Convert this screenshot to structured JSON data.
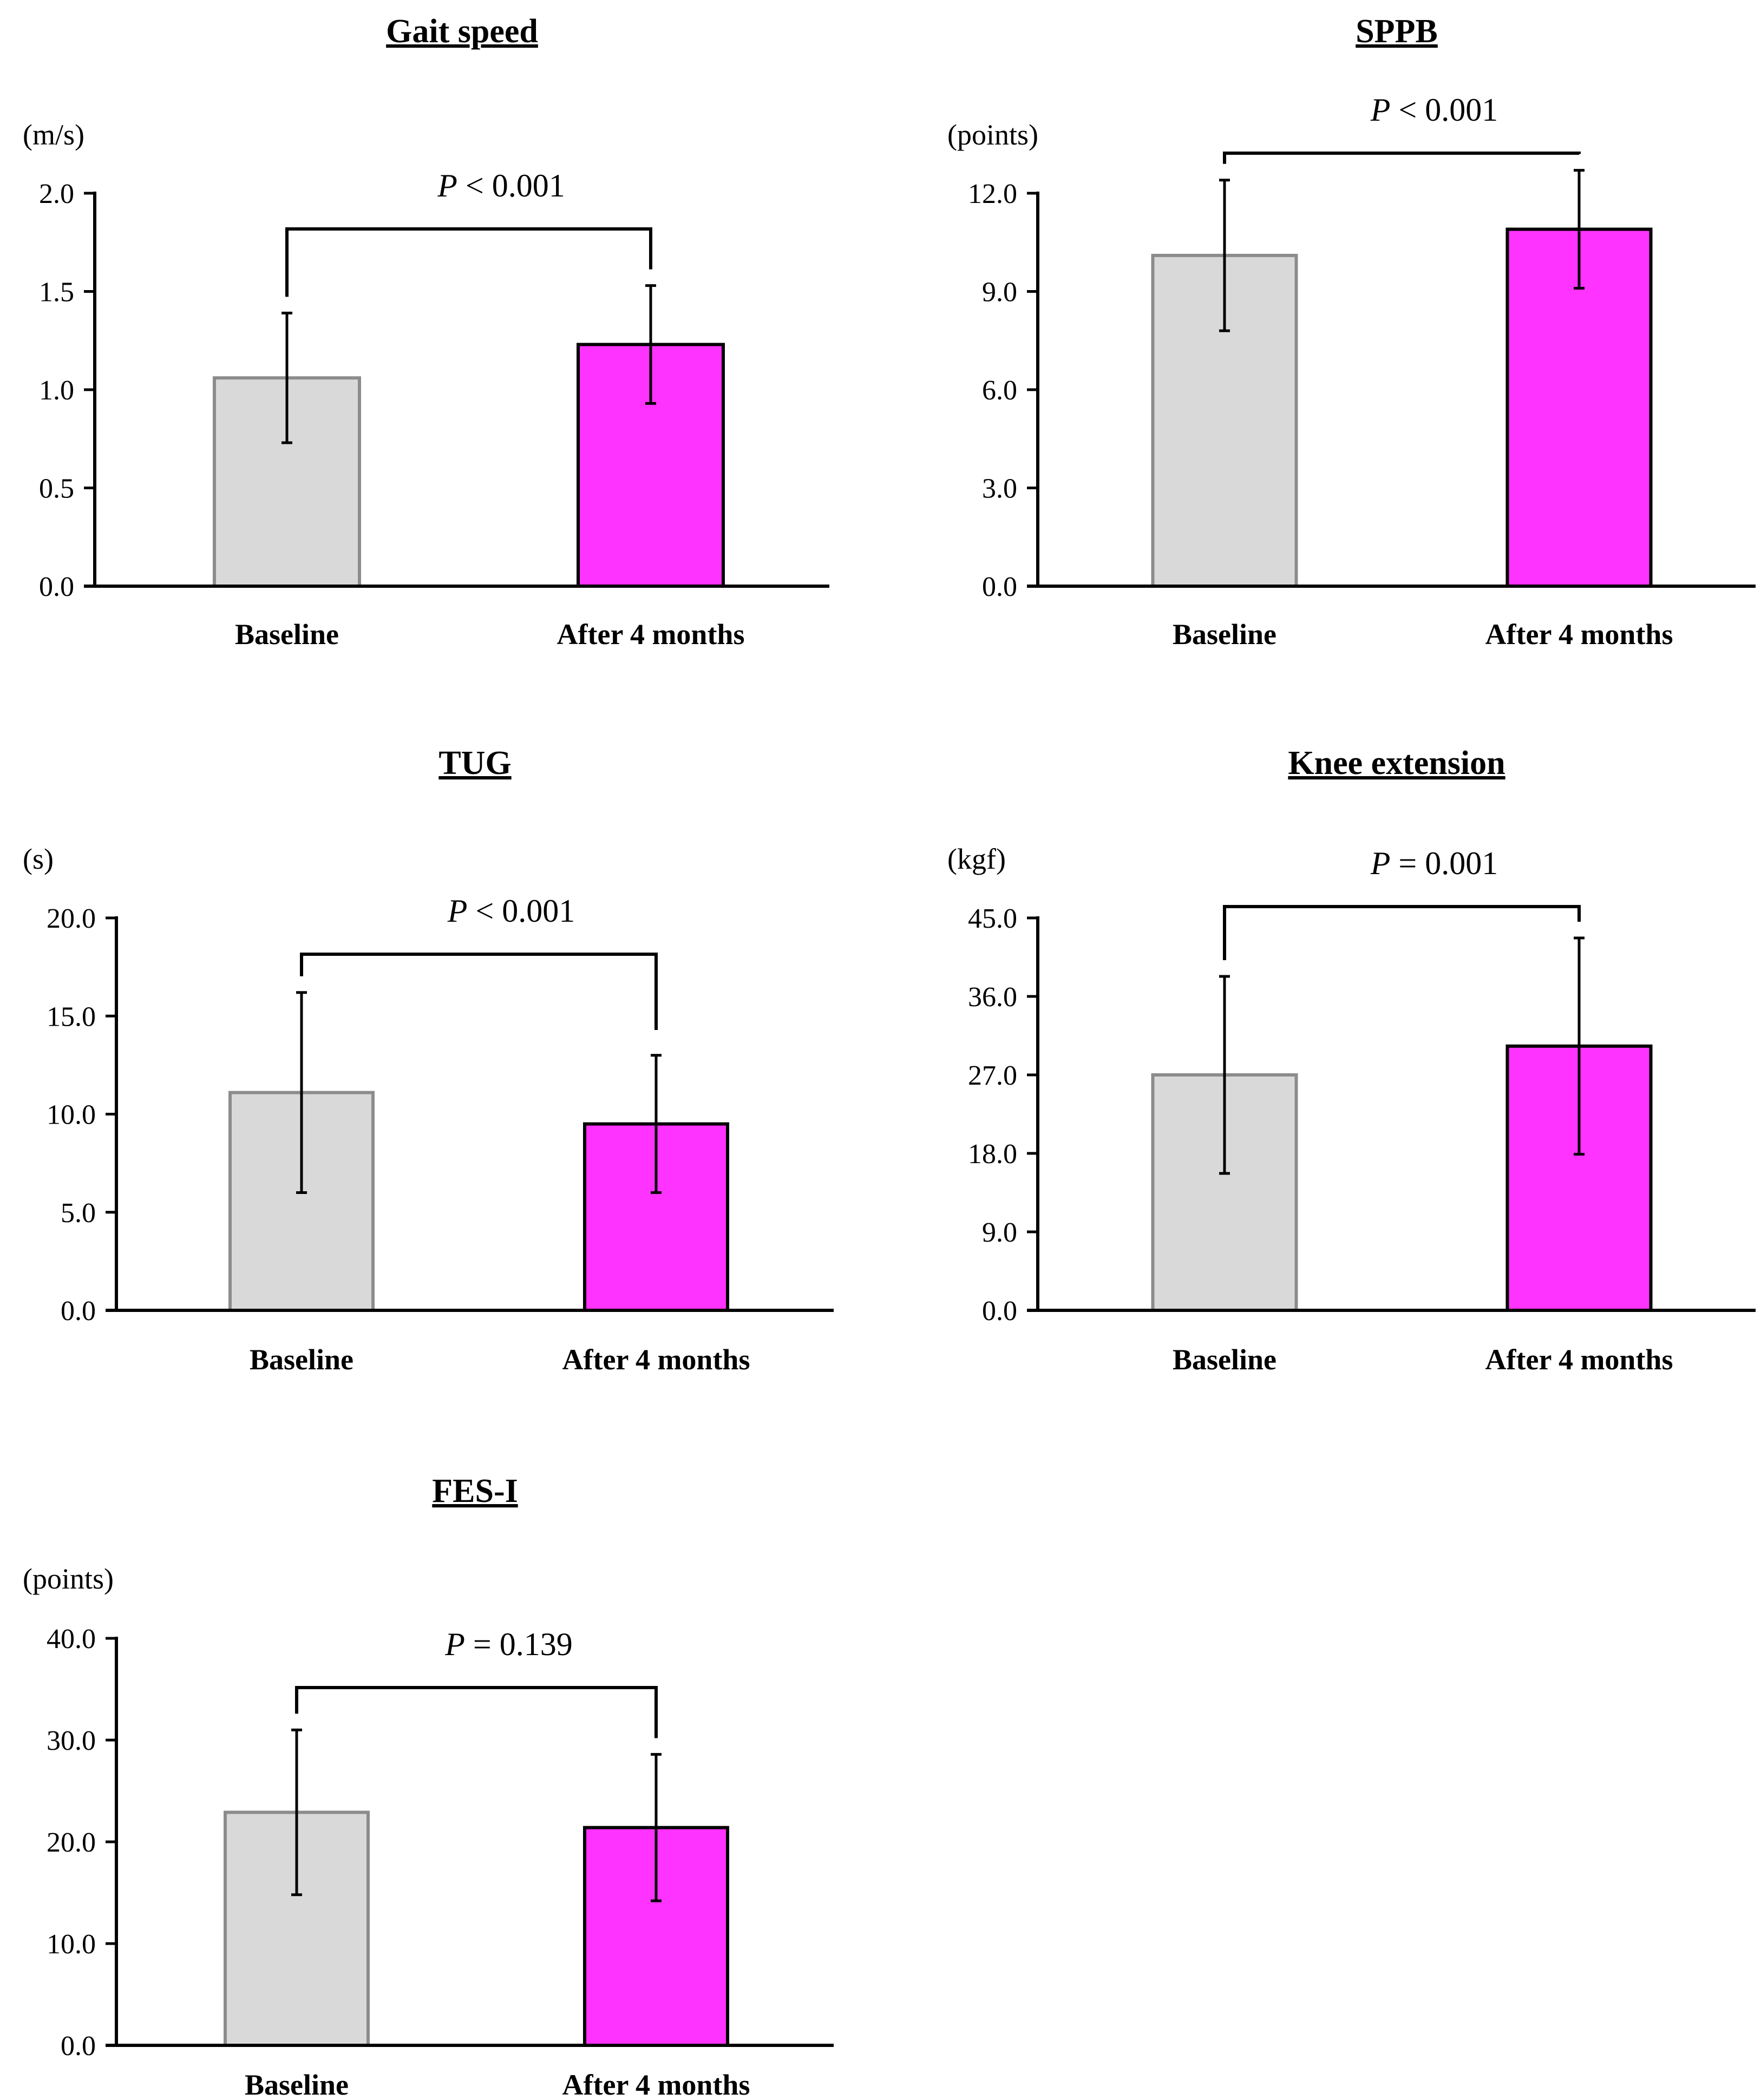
{
  "figure": {
    "category_labels": [
      "Baseline",
      "After 4 months"
    ],
    "colors": {
      "baseline_fill": "#d9d9d9",
      "baseline_stroke": "#8c8c8c",
      "after_fill": "#ff33ff",
      "after_stroke": "#000000"
    }
  },
  "chart_data": [
    {
      "type": "bar",
      "title": "Gait speed",
      "ylabel": "(m/s)",
      "categories": [
        "Baseline",
        "After 4 months"
      ],
      "values": [
        1.06,
        1.23
      ],
      "errors": [
        0.33,
        0.3
      ],
      "ylim": [
        0,
        2.0
      ],
      "yticks": [
        0.0,
        0.5,
        1.0,
        1.5,
        2.0
      ],
      "tick_labels": [
        "0.0",
        "0.5",
        "1.0",
        "1.5",
        "2.0"
      ],
      "p_prefix": "P",
      "p_text": " < 0.001"
    },
    {
      "type": "bar",
      "title": "SPPB",
      "ylabel": "(points)",
      "categories": [
        "Baseline",
        "After 4 months"
      ],
      "values": [
        10.1,
        10.9
      ],
      "errors": [
        2.3,
        1.8
      ],
      "ylim": [
        0,
        12.0
      ],
      "yticks": [
        0.0,
        3.0,
        6.0,
        9.0,
        12.0
      ],
      "tick_labels": [
        "0.0",
        "3.0",
        "6.0",
        "9.0",
        "12.0"
      ],
      "p_prefix": "P",
      "p_text": " < 0.001"
    },
    {
      "type": "bar",
      "title": "TUG",
      "ylabel": "(s)",
      "categories": [
        "Baseline",
        "After 4 months"
      ],
      "values": [
        11.1,
        9.5
      ],
      "errors": [
        5.1,
        3.5
      ],
      "ylim": [
        0,
        20.0
      ],
      "yticks": [
        0.0,
        5.0,
        10.0,
        15.0,
        20.0
      ],
      "tick_labels": [
        "0.0",
        "5.0",
        "10.0",
        "15.0",
        "20.0"
      ],
      "p_prefix": "P",
      "p_text": " < 0.001"
    },
    {
      "type": "bar",
      "title": "Knee extension",
      "ylabel": "(kgf)",
      "categories": [
        "Baseline",
        "After 4 months"
      ],
      "values": [
        27.0,
        30.3
      ],
      "errors": [
        11.3,
        12.4
      ],
      "ylim": [
        0,
        45.0
      ],
      "yticks": [
        0.0,
        9.0,
        18.0,
        27.0,
        36.0,
        45.0
      ],
      "tick_labels": [
        "0.0",
        "9.0",
        "18.0",
        "27.0",
        "36.0",
        "45.0"
      ],
      "p_prefix": "P",
      "p_text": " = 0.001"
    },
    {
      "type": "bar",
      "title": "FES-I",
      "ylabel": "(points)",
      "categories": [
        "Baseline",
        "After 4 months"
      ],
      "values": [
        22.9,
        21.4
      ],
      "errors": [
        8.1,
        7.2
      ],
      "ylim": [
        0,
        40.0
      ],
      "yticks": [
        0.0,
        10.0,
        20.0,
        30.0,
        40.0
      ],
      "tick_labels": [
        "0.0",
        "10.0",
        "20.0",
        "30.0",
        "40.0"
      ],
      "p_prefix": "P",
      "p_text": " = 0.139"
    }
  ]
}
